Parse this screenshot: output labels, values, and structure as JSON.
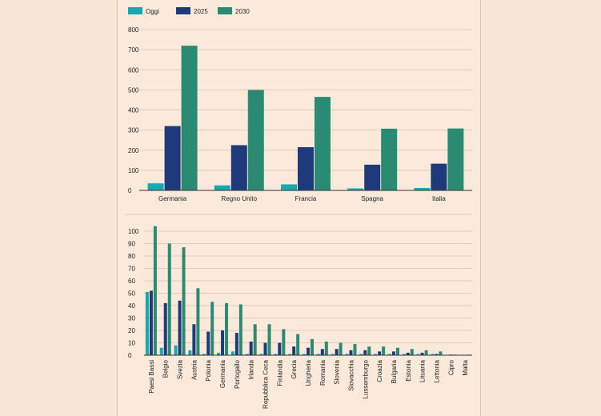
{
  "colors": {
    "oggi": "#1aa7b0",
    "y2025": "#1f3a7a",
    "y2030": "#2a8a72",
    "grid": "#e6cbb6",
    "axis": "#333333"
  },
  "legend": [
    {
      "label": "Oggi",
      "color": "#1aa7b0"
    },
    {
      "label": "2025",
      "color": "#1f3a7a"
    },
    {
      "label": "2030",
      "color": "#2a8a72"
    }
  ],
  "chart_data": [
    {
      "type": "bar",
      "categories": [
        "Germania",
        "Regno Unito",
        "Francia",
        "Spagna",
        "Italia"
      ],
      "series": [
        {
          "name": "Oggi",
          "values": [
            35,
            25,
            30,
            10,
            12
          ]
        },
        {
          "name": "2025",
          "values": [
            320,
            225,
            215,
            128,
            133
          ]
        },
        {
          "name": "2030",
          "values": [
            720,
            500,
            465,
            307,
            308
          ]
        }
      ],
      "ylim": [
        0,
        800
      ],
      "yticks": [
        0,
        100,
        200,
        300,
        400,
        500,
        600,
        700,
        800
      ]
    },
    {
      "type": "bar",
      "categories": [
        "Paesi Bassi",
        "Belgio",
        "Svezia",
        "Austria",
        "Polonia",
        "Germania",
        "Portogallo",
        "Irlanda",
        "Repubblica Ceca",
        "Finlandia",
        "Grecia",
        "Ungheria",
        "Romania",
        "Slovenia",
        "Slovacchia",
        "Lussemburgo",
        "Croazia",
        "Bulgaria",
        "Estonia",
        "Lituania",
        "Lettonia",
        "Cipro",
        "Malta"
      ],
      "series": [
        {
          "name": "Oggi",
          "values": [
            51,
            6,
            8,
            4,
            1,
            2,
            3,
            1,
            1,
            1,
            1,
            1,
            1,
            1,
            1,
            1,
            1,
            1,
            1,
            1,
            1,
            0.3,
            0.2
          ]
        },
        {
          "name": "2025",
          "values": [
            52,
            42,
            44,
            25,
            19,
            20,
            18,
            11,
            10,
            10,
            7,
            6,
            5,
            5,
            4,
            4,
            3,
            3,
            2,
            2,
            1,
            0.5,
            0.3
          ]
        },
        {
          "name": "2030",
          "values": [
            104,
            90,
            87,
            54,
            43,
            42,
            41,
            25,
            25,
            21,
            17,
            13,
            11,
            10,
            9,
            7,
            7,
            6,
            5,
            4,
            3,
            0.5,
            0.5
          ]
        }
      ],
      "ylim": [
        0,
        100
      ],
      "yticks": [
        0,
        10,
        20,
        30,
        40,
        50,
        60,
        70,
        80,
        90,
        100
      ]
    }
  ]
}
